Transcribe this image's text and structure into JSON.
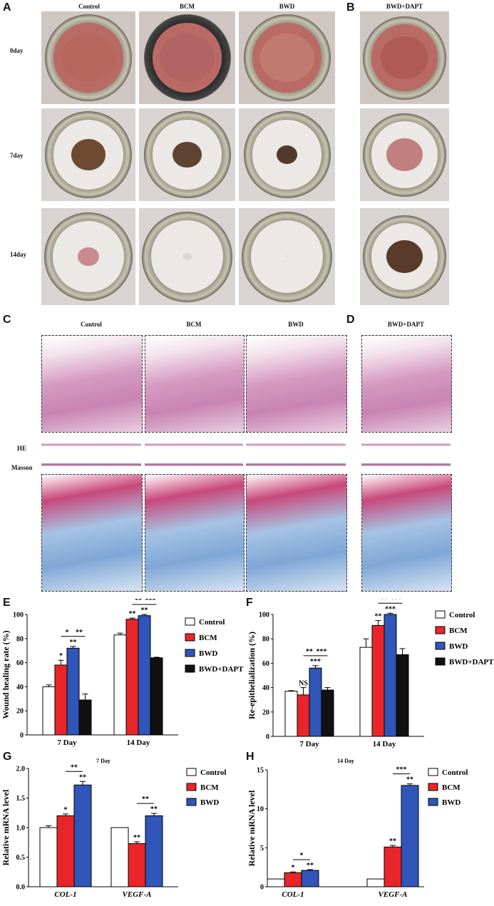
{
  "panels": {
    "A": "A",
    "B": "B",
    "C": "C",
    "D": "D",
    "E": "E",
    "F": "F",
    "G": "G",
    "H": "H"
  },
  "photos": {
    "columns": [
      "Control",
      "BCM",
      "BWD"
    ],
    "column_b": "BWD+DAPT",
    "rows": [
      "0day",
      "7day",
      "14day"
    ]
  },
  "histology": {
    "columns": [
      "Control",
      "BCM",
      "BWD"
    ],
    "column_d": "BWD+DAPT",
    "stain_he": "HE",
    "stain_masson": "Masson"
  },
  "colors": {
    "control": "#ffffff",
    "bcm": "#e8262a",
    "bwd": "#2f56b8",
    "dapt": "#111111"
  },
  "chart_data": [
    {
      "panel": "E",
      "type": "bar",
      "ylabel": "Wound healing rate (%)",
      "ylim": [
        0,
        100
      ],
      "yticks": [
        "0",
        "20",
        "40",
        "60",
        "80",
        "100"
      ],
      "categories": [
        "7 Day",
        "14 Day"
      ],
      "legend": [
        "Control",
        "BCM",
        "BWD",
        "BWD+DAPT"
      ],
      "series": [
        {
          "name": "Control",
          "values": [
            40,
            83
          ],
          "errors": [
            1.5,
            1.5
          ],
          "stars": [
            "",
            ""
          ]
        },
        {
          "name": "BCM",
          "values": [
            58,
            96
          ],
          "errors": [
            4,
            1
          ],
          "stars": [
            "*",
            "**"
          ]
        },
        {
          "name": "BWD",
          "values": [
            72,
            99
          ],
          "errors": [
            1.5,
            1
          ],
          "stars": [
            "**",
            "**"
          ]
        },
        {
          "name": "BWD+DAPT",
          "values": [
            29,
            64
          ],
          "errors": [
            5,
            0.5
          ],
          "stars": [
            "",
            ""
          ]
        }
      ],
      "brackets": [
        {
          "category": 0,
          "from": 1,
          "to": 2,
          "label": "*"
        },
        {
          "category": 0,
          "from": 2,
          "to": 3,
          "label": "**"
        },
        {
          "category": 1,
          "from": 1,
          "to": 2,
          "label": "**"
        },
        {
          "category": 1,
          "from": 2,
          "to": 3,
          "label": "***"
        }
      ]
    },
    {
      "panel": "F",
      "type": "bar",
      "ylabel": "Re-epithelialization (%)",
      "ylim": [
        0,
        100
      ],
      "yticks": [
        "0",
        "20",
        "40",
        "60",
        "80",
        "100"
      ],
      "categories": [
        "7 Day",
        "14 Day"
      ],
      "legend": [
        "Control",
        "BCM",
        "BWD",
        "BWD+DAPT"
      ],
      "series": [
        {
          "name": "Control",
          "values": [
            37,
            73
          ],
          "errors": [
            0.5,
            7
          ],
          "stars": [
            "",
            ""
          ]
        },
        {
          "name": "BCM",
          "values": [
            34,
            91
          ],
          "errors": [
            6,
            4
          ],
          "stars": [
            "NS",
            "**"
          ]
        },
        {
          "name": "BWD",
          "values": [
            56,
            100
          ],
          "errors": [
            2,
            1
          ],
          "stars": [
            "***",
            "***"
          ]
        },
        {
          "name": "BWD+DAPT",
          "values": [
            38,
            67
          ],
          "errors": [
            2,
            5
          ],
          "stars": [
            "",
            ""
          ]
        }
      ],
      "brackets": [
        {
          "category": 0,
          "from": 1,
          "to": 2,
          "label": "**"
        },
        {
          "category": 0,
          "from": 2,
          "to": 3,
          "label": "***"
        },
        {
          "category": 1,
          "from": 1,
          "to": 2,
          "label": "**"
        },
        {
          "category": 1,
          "from": 2,
          "to": 3,
          "label": "***"
        }
      ]
    },
    {
      "panel": "G",
      "type": "bar",
      "title": "7 Day",
      "ylabel": "Relative mRNA level",
      "ylim": [
        0,
        2.0
      ],
      "yticks": [
        "0.0",
        "0.5",
        "1.0",
        "1.5",
        "2.0"
      ],
      "categories": [
        "COL-1",
        "VEGF-A"
      ],
      "legend": [
        "Control",
        "BCM",
        "BWD"
      ],
      "series": [
        {
          "name": "Control",
          "values": [
            1.0,
            1.0
          ],
          "errors": [
            0.03,
            0.0
          ],
          "stars": [
            "",
            ""
          ]
        },
        {
          "name": "BCM",
          "values": [
            1.2,
            0.73
          ],
          "errors": [
            0.03,
            0.03
          ],
          "stars": [
            "*",
            "**"
          ]
        },
        {
          "name": "BWD",
          "values": [
            1.72,
            1.2
          ],
          "errors": [
            0.06,
            0.04
          ],
          "stars": [
            "**",
            "**"
          ]
        }
      ],
      "brackets": [
        {
          "category": 0,
          "from": 1,
          "to": 2,
          "label": "**"
        },
        {
          "category": 1,
          "from": 1,
          "to": 2,
          "label": "**"
        }
      ]
    },
    {
      "panel": "H",
      "type": "bar",
      "title": "14 Day",
      "ylabel": "Relative mRNA level",
      "ylim": [
        0,
        15
      ],
      "yticks": [
        "0",
        "5",
        "10",
        "15"
      ],
      "categories": [
        "COL-1",
        "VEGF-A"
      ],
      "legend": [
        "Control",
        "BCM",
        "BWD"
      ],
      "series": [
        {
          "name": "Control",
          "values": [
            1.0,
            1.0
          ],
          "errors": [
            0,
            0
          ],
          "stars": [
            "",
            ""
          ]
        },
        {
          "name": "BCM",
          "values": [
            1.8,
            5.1
          ],
          "errors": [
            0.1,
            0.2
          ],
          "stars": [
            "*",
            "**"
          ]
        },
        {
          "name": "BWD",
          "values": [
            2.1,
            13.0
          ],
          "errors": [
            0.1,
            0.2
          ],
          "stars": [
            "**",
            "**"
          ]
        }
      ],
      "brackets": [
        {
          "category": 0,
          "from": 1,
          "to": 2,
          "label": "*"
        },
        {
          "category": 1,
          "from": 1,
          "to": 2,
          "label": "***"
        }
      ]
    }
  ]
}
